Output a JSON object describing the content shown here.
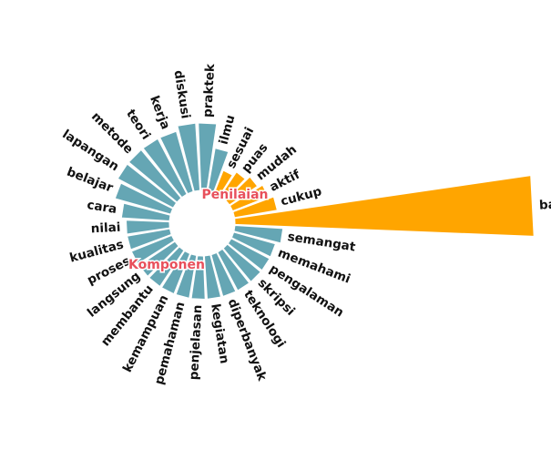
{
  "chart_data": {
    "type": "circular-bar",
    "groups": [
      {
        "name": "Penilaian",
        "color": "#ffa500"
      },
      {
        "name": "Komponen",
        "color": "#65a6b4"
      }
    ],
    "categories": [
      "baik",
      "semangat",
      "memahami",
      "pengalaman",
      "skripsi",
      "teknologi",
      "diperbanyak",
      "kegiatan",
      "penjelasan",
      "pemahaman",
      "kemampuan",
      "membantu",
      "langsung",
      "proses",
      "kualitas",
      "nilai",
      "cara",
      "belajar",
      "lapangan",
      "metode",
      "teori",
      "kerja",
      "diskusi",
      "praktek",
      "ilmu",
      "sesuai",
      "puas",
      "mudah",
      "aktif",
      "cukup"
    ],
    "group_of": [
      "Penilaian",
      "Komponen",
      "Komponen",
      "Komponen",
      "Komponen",
      "Komponen",
      "Komponen",
      "Komponen",
      "Komponen",
      "Komponen",
      "Komponen",
      "Komponen",
      "Komponen",
      "Komponen",
      "Komponen",
      "Komponen",
      "Komponen",
      "Komponen",
      "Komponen",
      "Komponen",
      "Komponen",
      "Komponen",
      "Komponen",
      "Komponen",
      "Komponen",
      "Penilaian",
      "Penilaian",
      "Penilaian",
      "Penilaian",
      "Penilaian"
    ],
    "values": [
      62,
      10,
      9,
      9,
      9,
      9,
      9,
      9,
      9,
      9,
      9,
      9,
      9,
      9,
      9,
      9,
      10,
      12,
      13,
      13,
      13,
      13,
      14,
      14,
      9,
      5,
      6,
      7,
      8,
      9
    ],
    "legend": "none",
    "grid": false
  }
}
